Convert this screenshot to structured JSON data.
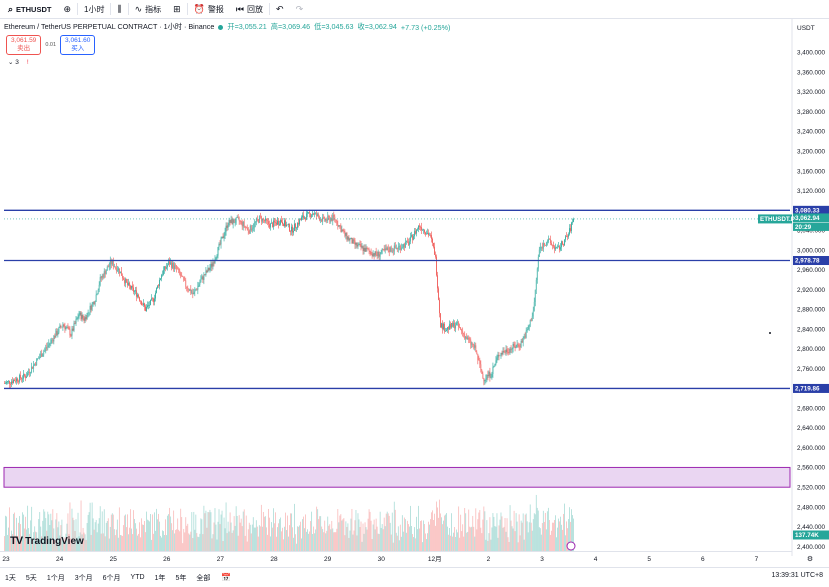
{
  "toolbar": {
    "symbol": "ETHUSDT",
    "add_icon": "plus-circle-icon",
    "timeframe": "1小时",
    "candle_icon": "candlestick-icon",
    "indicators_label": "指标",
    "layout_icon": "grid-icon",
    "alert_label": "警报",
    "replay_label": "回放",
    "undo_icon": "undo-icon",
    "redo_icon": "redo-icon"
  },
  "legend": {
    "title": "Ethereum / TetherUS PERPETUAL CONTRACT · 1小时 · Binance",
    "open": "开=3,055.21",
    "high": "高=3,069.46",
    "low": "低=3,045.63",
    "close": "收=3,062.94",
    "change": "+7.73 (+0.25%)"
  },
  "trade": {
    "sell_price": "3,061.59",
    "sell_label": "卖出",
    "spread": "0.01",
    "buy_price": "3,061.60",
    "buy_label": "买入"
  },
  "indicator_row": {
    "count": "3",
    "warn": "!"
  },
  "axis": {
    "currency": "USDT"
  },
  "chart_data": {
    "type": "candlestick",
    "title": "Ethereum / TetherUS PERPETUAL CONTRACT · 1小时 · Binance",
    "ylim": [
      2400,
      3420
    ],
    "y_ticks": [
      2400,
      2440,
      2480,
      2520,
      2560,
      2600,
      2640,
      2680,
      2720,
      2760,
      2800,
      2840,
      2880,
      2920,
      2960,
      3000,
      3040,
      3080,
      3120,
      3160,
      3200,
      3240,
      3280,
      3320,
      3360,
      3400
    ],
    "x_ticks": [
      "23",
      "24",
      "25",
      "26",
      "27",
      "28",
      "29",
      "30",
      "12月",
      "2",
      "3",
      "4",
      "5",
      "6",
      "7"
    ],
    "horizontal_lines": [
      3080.33,
      2978.78,
      2719.86
    ],
    "zone": [
      2520,
      2560
    ],
    "last_price": 3062.94,
    "price_labels": {
      "line_high": "3,080.33",
      "symbol_tag": "ETHUSDT.P",
      "last": "3,062.94",
      "countdown": "20:29",
      "line_mid": "2,978.78",
      "line_low": "2,719.86",
      "volume": "137.74K"
    },
    "path_points": [
      [
        0,
        2730
      ],
      [
        8,
        2745
      ],
      [
        14,
        2790
      ],
      [
        18,
        2820
      ],
      [
        22,
        2850
      ],
      [
        25,
        2830
      ],
      [
        28,
        2870
      ],
      [
        30,
        2860
      ],
      [
        34,
        2900
      ],
      [
        36,
        2940
      ],
      [
        40,
        2975
      ],
      [
        43,
        2960
      ],
      [
        46,
        2930
      ],
      [
        50,
        2910
      ],
      [
        53,
        2880
      ],
      [
        56,
        2900
      ],
      [
        59,
        2950
      ],
      [
        62,
        2975
      ],
      [
        65,
        2960
      ],
      [
        68,
        2930
      ],
      [
        71,
        2910
      ],
      [
        74,
        2940
      ],
      [
        78,
        2970
      ],
      [
        81,
        3010
      ],
      [
        84,
        3055
      ],
      [
        88,
        3060
      ],
      [
        92,
        3040
      ],
      [
        96,
        3065
      ],
      [
        100,
        3050
      ],
      [
        104,
        3060
      ],
      [
        108,
        3040
      ],
      [
        112,
        3065
      ],
      [
        116,
        3075
      ],
      [
        120,
        3060
      ],
      [
        124,
        3065
      ],
      [
        128,
        3030
      ],
      [
        132,
        3010
      ],
      [
        136,
        3000
      ],
      [
        140,
        2990
      ],
      [
        144,
        3000
      ],
      [
        148,
        3005
      ],
      [
        152,
        3015
      ],
      [
        156,
        3050
      ],
      [
        160,
        3030
      ],
      [
        162,
        2990
      ],
      [
        164,
        2850
      ],
      [
        166,
        2840
      ],
      [
        170,
        2850
      ],
      [
        174,
        2820
      ],
      [
        177,
        2800
      ],
      [
        180,
        2740
      ],
      [
        183,
        2750
      ],
      [
        186,
        2790
      ],
      [
        190,
        2800
      ],
      [
        194,
        2810
      ],
      [
        197,
        2840
      ],
      [
        199,
        2880
      ],
      [
        201,
        3000
      ],
      [
        204,
        3020
      ],
      [
        208,
        3000
      ],
      [
        212,
        3030
      ],
      [
        214,
        3062.94
      ]
    ],
    "time_axis": "hourly candles from Nov 23 through Dec 3"
  },
  "bottombar": {
    "timeframes": [
      "1天",
      "5天",
      "1个月",
      "3个月",
      "6个月",
      "YTD",
      "1年",
      "5年",
      "全部"
    ],
    "calendar_icon": "calendar-icon",
    "clock": "13:39:31 UTC+8"
  },
  "logo_text": "TradingView",
  "colors": {
    "up": "#26a69a",
    "down": "#ef5350",
    "line": "#2a3fa8",
    "zone_fill": "#ead6f2",
    "zone_border": "#9c27b0",
    "price_tag": "#26a69a"
  }
}
